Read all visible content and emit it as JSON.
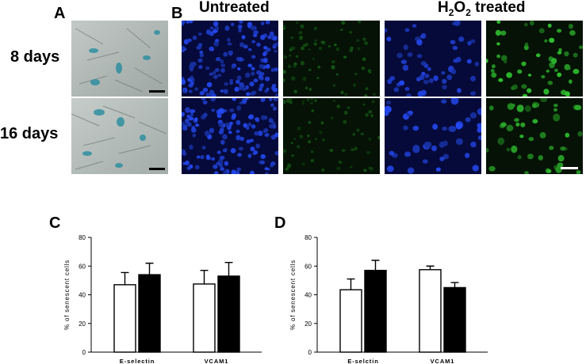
{
  "figure": {
    "labels": {
      "a": "A",
      "b": "B",
      "c": "C",
      "d": "D"
    },
    "rows": [
      "8 days",
      "16 days"
    ],
    "columns": {
      "untreated": "Untreated",
      "treated_prefix": "H",
      "treated_sub1": "2",
      "treated_mid": "O",
      "treated_sub2": "2",
      "treated_suffix": " treated"
    }
  },
  "colors": {
    "blue_stain": "#1a3aff",
    "green_stain": "#2fae3a",
    "brightfield": "#aeb6b4",
    "bar_treated": "#000000",
    "bar_untreated": "#ffffff"
  },
  "chart_data": [
    {
      "id": "C",
      "type": "bar",
      "categories": [
        "E-selectin",
        "VCAM1"
      ],
      "series": [
        {
          "values": [
            47,
            47.5
          ],
          "errors": [
            8.5,
            9.5
          ],
          "fill": "#ffffff"
        },
        {
          "values": [
            54,
            53
          ],
          "errors": [
            8,
            9.5
          ],
          "fill": "#000000"
        }
      ],
      "ylabel": "% of senescent cells",
      "ylim": [
        0,
        80
      ],
      "yticks": [
        0,
        20,
        40,
        60,
        80
      ],
      "grid": false
    },
    {
      "id": "D",
      "type": "bar",
      "categories": [
        "E-selctin",
        "VCAM1"
      ],
      "series": [
        {
          "values": [
            43.5,
            57.5
          ],
          "errors": [
            7.5,
            2.5
          ],
          "fill": "#ffffff"
        },
        {
          "values": [
            57,
            45
          ],
          "errors": [
            7,
            3.5
          ],
          "fill": "#000000"
        }
      ],
      "ylabel": "% of senescent cells",
      "ylim": [
        0,
        80
      ],
      "yticks": [
        0,
        20,
        40,
        60,
        80
      ],
      "grid": false
    }
  ]
}
